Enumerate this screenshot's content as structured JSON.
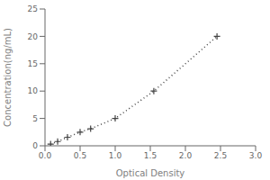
{
  "chart_data": {
    "type": "line",
    "xlabel": "Optical Density",
    "ylabel": "Concentration(ng/mL)",
    "x": [
      0.08,
      0.18,
      0.32,
      0.5,
      0.65,
      1.0,
      1.55,
      2.45
    ],
    "values": [
      0.31,
      0.78,
      1.56,
      2.5,
      3.12,
      5.0,
      10.0,
      20.0
    ],
    "xlim": [
      0,
      3
    ],
    "ylim": [
      0,
      25
    ],
    "xticks": [
      {
        "value": 0,
        "label": "0.0"
      },
      0.5,
      {
        "value": 1,
        "label": "1.0"
      },
      1.5,
      {
        "value": 2,
        "label": "2.0"
      },
      2.5,
      {
        "value": 3,
        "label": "3.0"
      }
    ],
    "yticks": [
      0,
      5,
      10,
      15,
      20,
      25
    ],
    "color": "#444444",
    "marker": "plus",
    "line_style": "dotted",
    "grid": false
  }
}
